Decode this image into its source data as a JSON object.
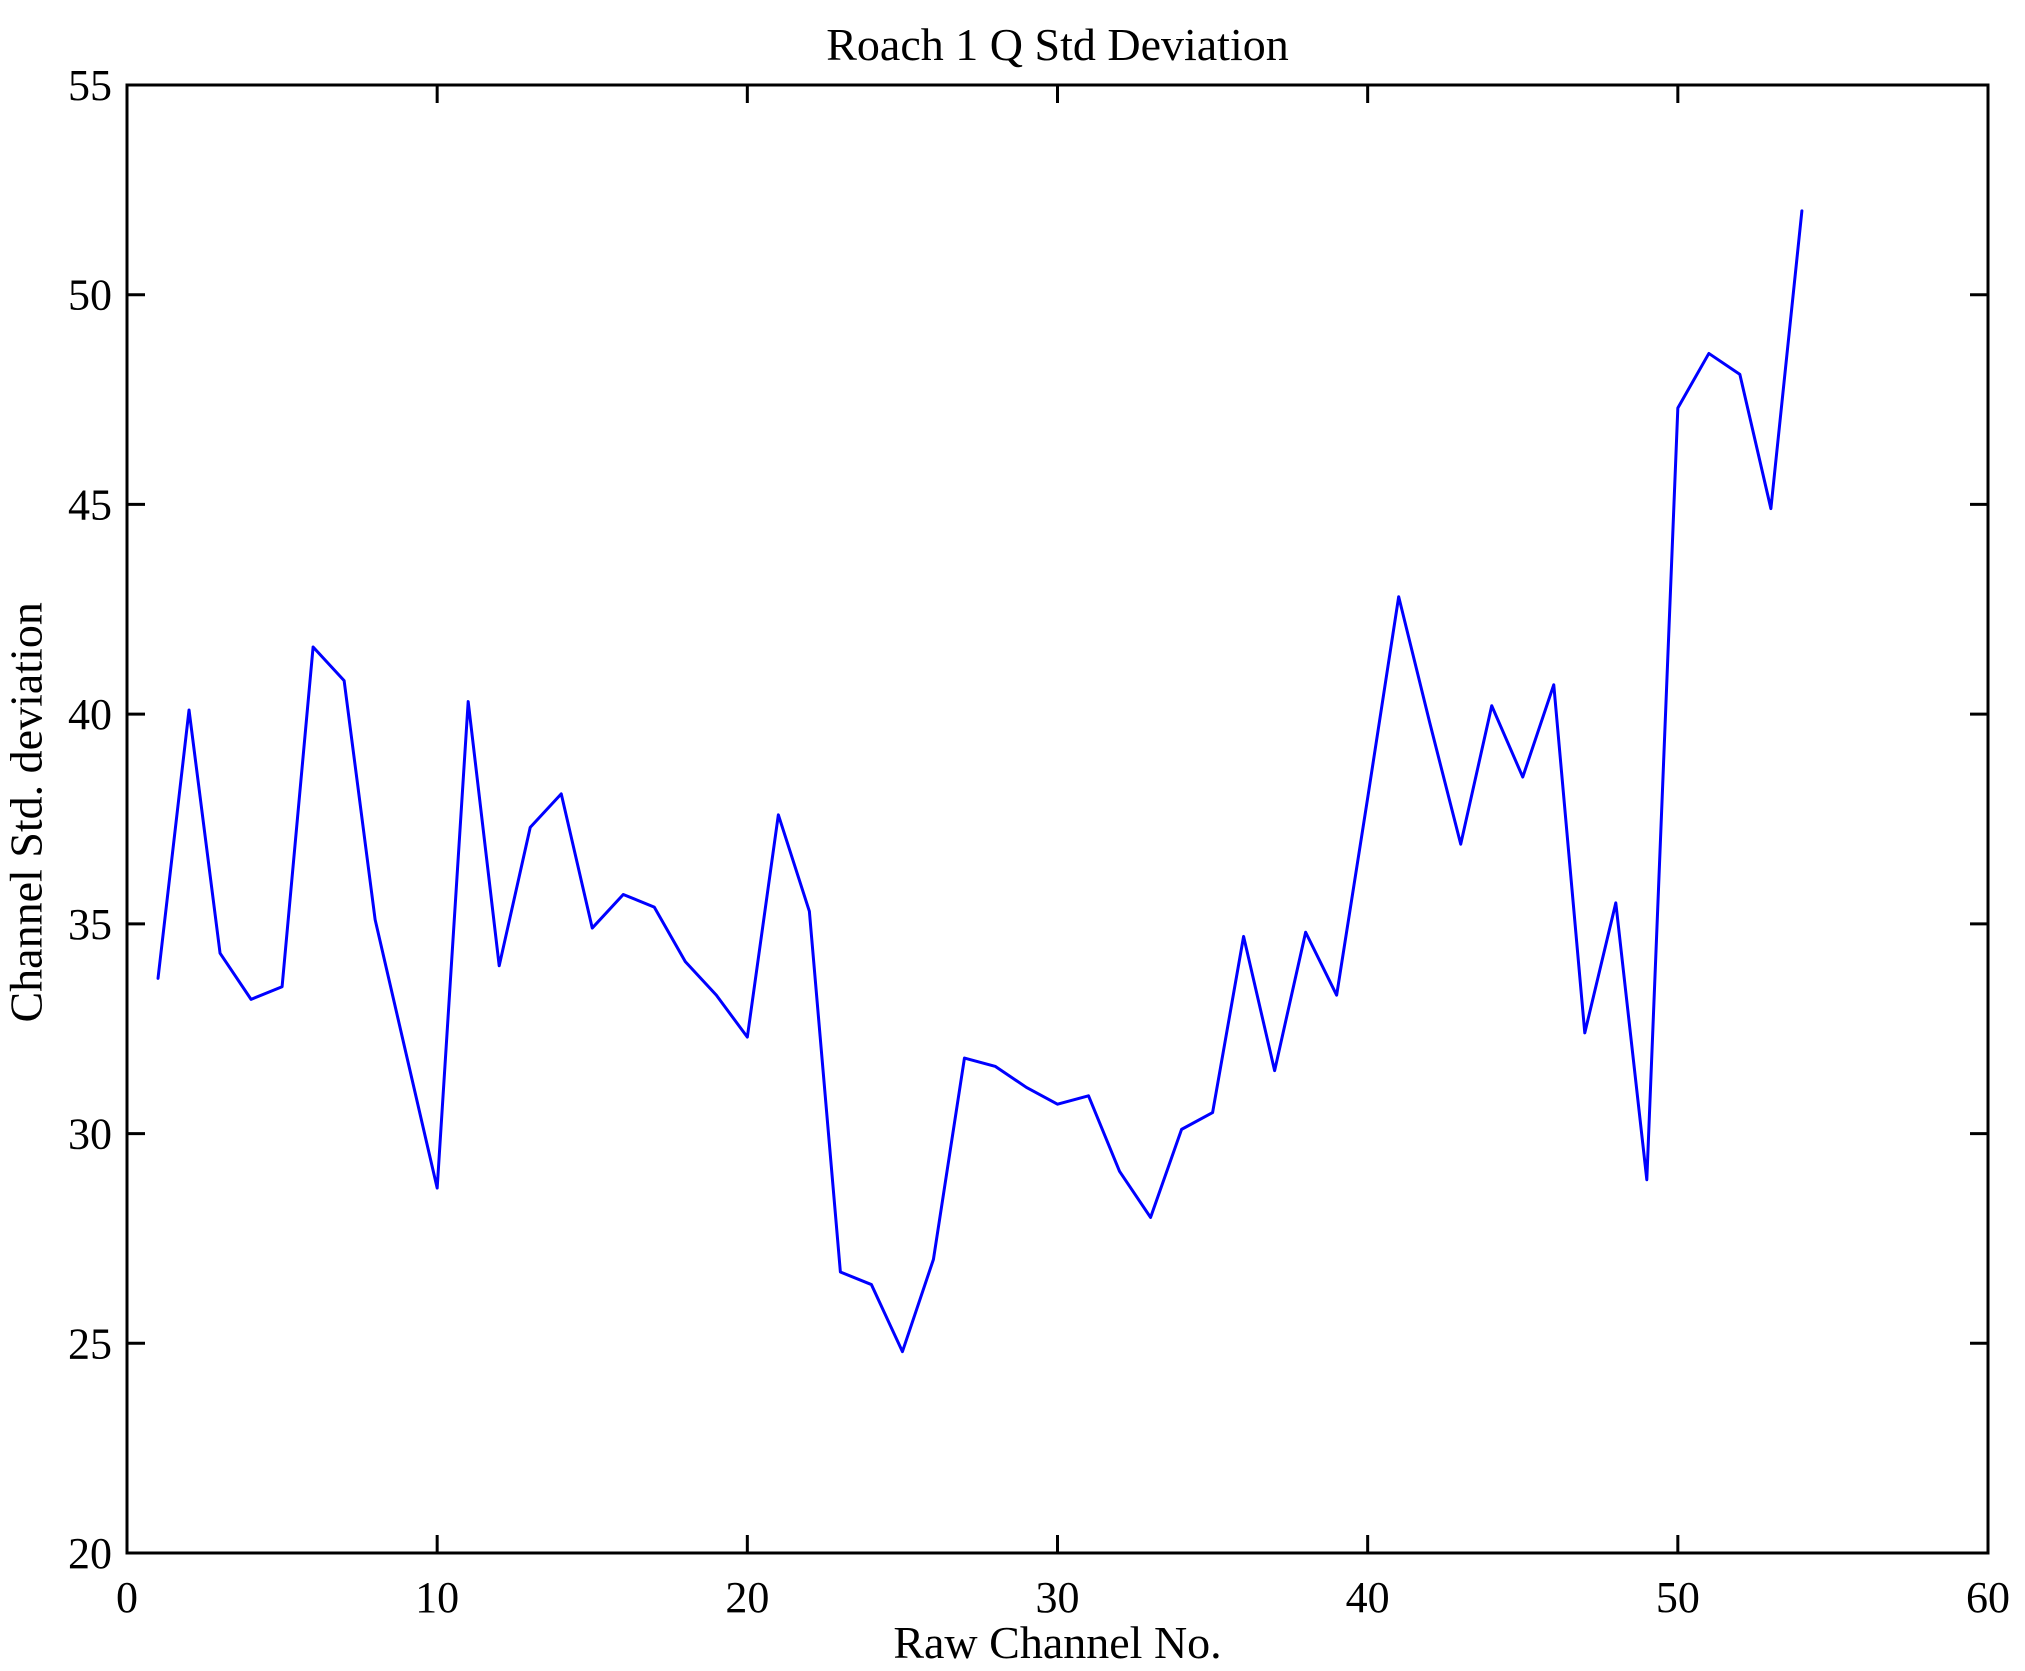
{
  "figure": {
    "title": "Roach 1 Q Std Deviation",
    "xlabel": "Raw Channel No.",
    "ylabel": "Channel Std. deviation"
  },
  "chart_data": {
    "type": "line",
    "title": "Roach 1 Q Std Deviation",
    "xlabel": "Raw Channel No.",
    "ylabel": "Channel Std. deviation",
    "xlim": [
      0,
      60
    ],
    "ylim": [
      20,
      55
    ],
    "xticks": [
      0,
      10,
      20,
      30,
      40,
      50,
      60
    ],
    "yticks": [
      20,
      25,
      30,
      35,
      40,
      45,
      50,
      55
    ],
    "grid": false,
    "legend": null,
    "line_color": "#0000FF",
    "axis_color": "#000000",
    "x": [
      1,
      2,
      3,
      4,
      5,
      6,
      7,
      8,
      9,
      10,
      11,
      12,
      13,
      14,
      15,
      16,
      17,
      18,
      19,
      20,
      21,
      22,
      23,
      24,
      25,
      26,
      27,
      28,
      29,
      30,
      31,
      32,
      33,
      34,
      35,
      36,
      37,
      38,
      39,
      40,
      41,
      42,
      43,
      44,
      45,
      46,
      47,
      48,
      49,
      50,
      51,
      52,
      53,
      54
    ],
    "values": [
      33.7,
      40.1,
      34.3,
      33.2,
      33.5,
      41.6,
      40.8,
      35.1,
      31.9,
      28.7,
      40.3,
      34.0,
      37.3,
      38.1,
      34.9,
      35.7,
      35.4,
      34.1,
      33.3,
      32.3,
      37.6,
      35.3,
      26.7,
      26.4,
      24.8,
      27.0,
      31.8,
      31.6,
      31.1,
      30.7,
      30.9,
      29.1,
      28.0,
      30.1,
      30.5,
      34.7,
      31.5,
      34.8,
      33.3,
      38.0,
      42.8,
      39.8,
      36.9,
      40.2,
      38.5,
      40.7,
      32.4,
      35.5,
      28.9,
      47.3,
      48.6,
      48.1,
      44.9,
      52.0
    ]
  }
}
